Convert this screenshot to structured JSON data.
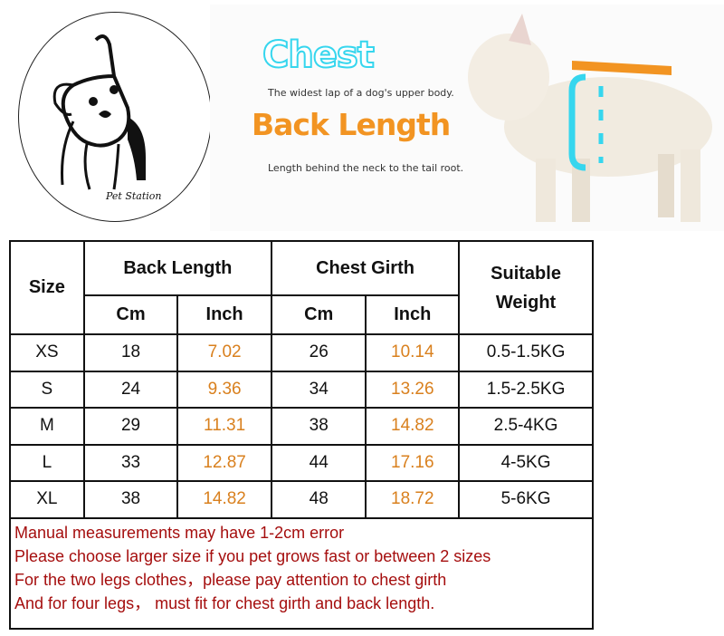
{
  "logo": {
    "brand": "Pet Station"
  },
  "banner": {
    "chest_title": "Chest",
    "chest_desc": "The widest lap of a dog's upper body.",
    "back_title": "Back Length",
    "back_desc": "Length behind the neck to the tail root.",
    "colors": {
      "chest": "#36d6ee",
      "back": "#f29422"
    }
  },
  "table": {
    "headers": {
      "size": "Size",
      "back": "Back Length",
      "chest": "Chest Girth",
      "weight": "Suitable Weight",
      "cm": "Cm",
      "inch": "Inch"
    },
    "rows": [
      {
        "size": "XS",
        "back_cm": "18",
        "back_in": "7.02",
        "chest_cm": "26",
        "chest_in": "10.14",
        "weight": "0.5-1.5KG"
      },
      {
        "size": "S",
        "back_cm": "24",
        "back_in": "9.36",
        "chest_cm": "34",
        "chest_in": "13.26",
        "weight": "1.5-2.5KG"
      },
      {
        "size": "M",
        "back_cm": "29",
        "back_in": "11.31",
        "chest_cm": "38",
        "chest_in": "14.82",
        "weight": "2.5-4KG"
      },
      {
        "size": "L",
        "back_cm": "33",
        "back_in": "12.87",
        "chest_cm": "44",
        "chest_in": "17.16",
        "weight": "4-5KG"
      },
      {
        "size": "XL",
        "back_cm": "38",
        "back_in": "14.82",
        "chest_cm": "48",
        "chest_in": "18.72",
        "weight": "5-6KG"
      }
    ],
    "notes": [
      "Manual measurements may have 1-2cm error",
      "Please choose larger size if you pet grows fast or between 2 sizes",
      "For the two legs clothes，please pay attention to chest girth",
      "And for four legs， must fit for chest girth and back length."
    ]
  }
}
